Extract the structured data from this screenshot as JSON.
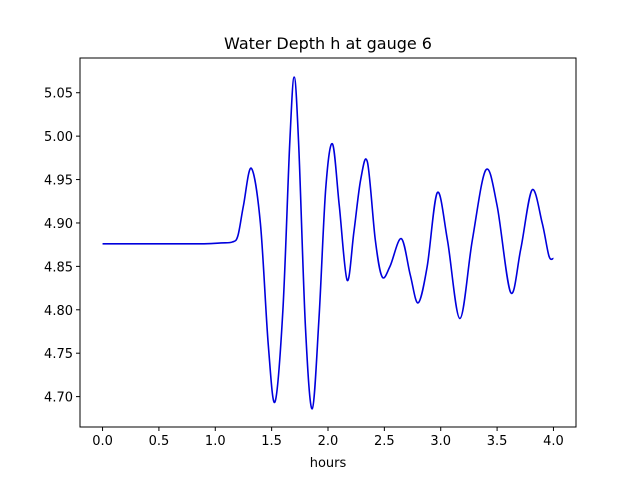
{
  "chart_data": {
    "type": "line",
    "title": "Water Depth h at gauge 6",
    "xlabel": "hours",
    "ylabel": "",
    "xlim": [
      -0.2,
      4.2
    ],
    "ylim": [
      4.665,
      5.09
    ],
    "xticks": [
      0.0,
      0.5,
      1.0,
      1.5,
      2.0,
      2.5,
      3.0,
      3.5,
      4.0
    ],
    "xtick_labels": [
      "0.0",
      "0.5",
      "1.0",
      "1.5",
      "2.0",
      "2.5",
      "3.0",
      "3.5",
      "4.0"
    ],
    "yticks": [
      4.7,
      4.75,
      4.8,
      4.85,
      4.9,
      4.95,
      5.0,
      5.05
    ],
    "ytick_labels": [
      "4.70",
      "4.75",
      "4.80",
      "4.85",
      "4.90",
      "4.95",
      "5.00",
      "5.05"
    ],
    "grid": false,
    "series": [
      {
        "color": "#0000dd",
        "x": [
          0.0,
          0.5,
          0.9,
          1.05,
          1.15,
          1.2,
          1.25,
          1.32,
          1.4,
          1.47,
          1.53,
          1.6,
          1.66,
          1.7,
          1.74,
          1.8,
          1.86,
          1.92,
          1.98,
          2.04,
          2.1,
          2.17,
          2.23,
          2.29,
          2.35,
          2.42,
          2.48,
          2.55,
          2.65,
          2.73,
          2.8,
          2.88,
          2.97,
          3.06,
          3.17,
          3.28,
          3.4,
          3.5,
          3.62,
          3.71,
          3.81,
          3.9,
          3.96,
          4.0
        ],
        "values": [
          4.876,
          4.876,
          4.876,
          4.877,
          4.878,
          4.885,
          4.92,
          4.963,
          4.9,
          4.76,
          4.694,
          4.8,
          4.99,
          5.068,
          4.99,
          4.78,
          4.686,
          4.79,
          4.94,
          4.991,
          4.92,
          4.834,
          4.89,
          4.95,
          4.97,
          4.88,
          4.838,
          4.85,
          4.882,
          4.84,
          4.808,
          4.85,
          4.935,
          4.88,
          4.79,
          4.88,
          4.961,
          4.92,
          4.82,
          4.87,
          4.938,
          4.9,
          4.862,
          4.859
        ]
      }
    ]
  }
}
